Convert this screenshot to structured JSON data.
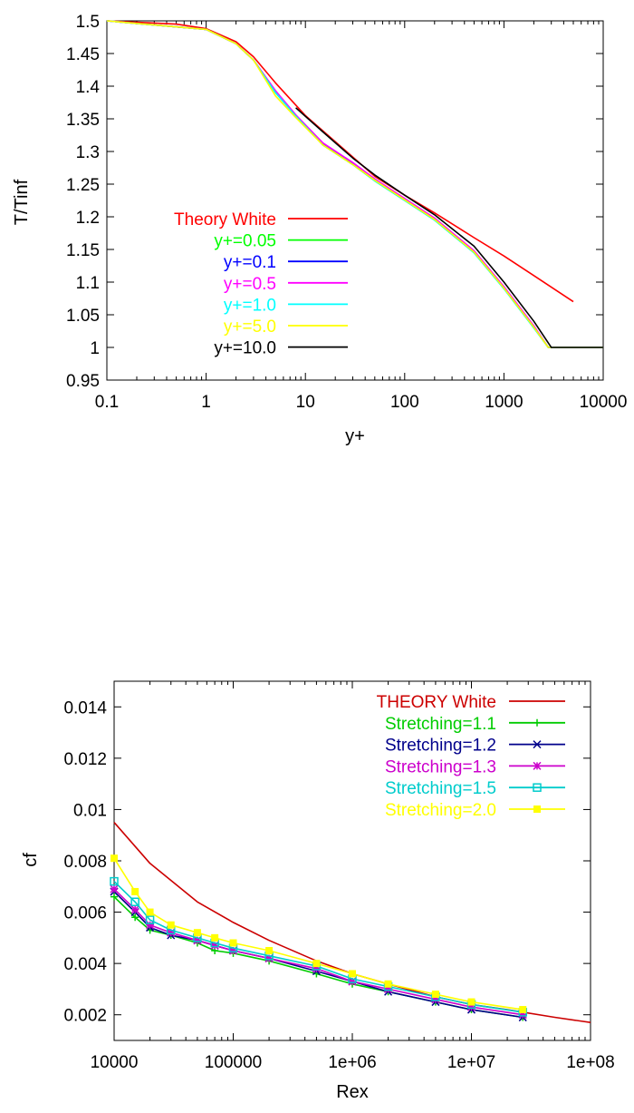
{
  "chart_data": [
    {
      "type": "line",
      "xlabel": "y+",
      "ylabel": "T/Tinf",
      "xscale": "log",
      "xlim": [
        0.1,
        10000
      ],
      "ylim": [
        0.95,
        1.5
      ],
      "xticks": [
        "0.1",
        "1",
        "10",
        "100",
        "1000",
        "10000"
      ],
      "yticks": [
        "0.95",
        "1",
        "1.05",
        "1.1",
        "1.15",
        "1.2",
        "1.25",
        "1.3",
        "1.35",
        "1.4",
        "1.45",
        "1.5"
      ],
      "grid": false,
      "legend_position": "left",
      "series": [
        {
          "name": "Theory White",
          "color": "#ff0000",
          "points": [
            [
              0.1,
              1.5
            ],
            [
              0.5,
              1.495
            ],
            [
              1,
              1.488
            ],
            [
              2,
              1.468
            ],
            [
              3,
              1.445
            ],
            [
              5,
              1.405
            ],
            [
              10,
              1.355
            ],
            [
              20,
              1.315
            ],
            [
              50,
              1.262
            ],
            [
              100,
              1.233
            ],
            [
              200,
              1.206
            ],
            [
              500,
              1.168
            ],
            [
              1000,
              1.14
            ],
            [
              2000,
              1.11
            ],
            [
              5000,
              1.07
            ]
          ]
        },
        {
          "name": "y+=0.05",
          "color": "#00ff00",
          "points": [
            [
              0.1,
              1.5
            ],
            [
              1,
              1.487
            ],
            [
              2,
              1.465
            ],
            [
              3,
              1.44
            ],
            [
              5,
              1.39
            ],
            [
              8,
              1.355
            ],
            [
              15,
              1.31
            ],
            [
              30,
              1.28
            ],
            [
              50,
              1.255
            ],
            [
              100,
              1.225
            ],
            [
              200,
              1.195
            ],
            [
              500,
              1.145
            ],
            [
              1000,
              1.09
            ],
            [
              2000,
              1.03
            ],
            [
              2800,
              1.0
            ],
            [
              10000,
              1.0
            ]
          ]
        },
        {
          "name": "y+=0.1",
          "color": "#0000ff",
          "points": [
            [
              0.1,
              1.5
            ],
            [
              1,
              1.487
            ],
            [
              2,
              1.465
            ],
            [
              3,
              1.44
            ],
            [
              5,
              1.392
            ],
            [
              8,
              1.355
            ],
            [
              15,
              1.312
            ],
            [
              30,
              1.282
            ],
            [
              50,
              1.257
            ],
            [
              100,
              1.227
            ],
            [
              200,
              1.197
            ],
            [
              500,
              1.147
            ],
            [
              1000,
              1.092
            ],
            [
              2000,
              1.032
            ],
            [
              2800,
              1.0
            ],
            [
              10000,
              1.0
            ]
          ]
        },
        {
          "name": "y+=0.5",
          "color": "#ff00ff",
          "points": [
            [
              0.1,
              1.5
            ],
            [
              1,
              1.487
            ],
            [
              2,
              1.465
            ],
            [
              3,
              1.44
            ],
            [
              5,
              1.393
            ],
            [
              8,
              1.356
            ],
            [
              15,
              1.313
            ],
            [
              30,
              1.283
            ],
            [
              50,
              1.258
            ],
            [
              100,
              1.228
            ],
            [
              200,
              1.198
            ],
            [
              500,
              1.148
            ],
            [
              1000,
              1.093
            ],
            [
              2000,
              1.033
            ],
            [
              2800,
              1.0
            ],
            [
              10000,
              1.0
            ]
          ]
        },
        {
          "name": "y+=1.0",
          "color": "#00ffff",
          "points": [
            [
              0.1,
              1.5
            ],
            [
              1,
              1.487
            ],
            [
              2,
              1.465
            ],
            [
              3,
              1.44
            ],
            [
              5,
              1.39
            ],
            [
              8,
              1.354
            ],
            [
              15,
              1.31
            ],
            [
              30,
              1.28
            ],
            [
              50,
              1.255
            ],
            [
              100,
              1.225
            ],
            [
              200,
              1.195
            ],
            [
              500,
              1.145
            ],
            [
              1000,
              1.09
            ],
            [
              2000,
              1.03
            ],
            [
              2800,
              1.0
            ],
            [
              10000,
              1.0
            ]
          ]
        },
        {
          "name": "y+=5.0",
          "color": "#ffff00",
          "points": [
            [
              0.1,
              1.5
            ],
            [
              1,
              1.487
            ],
            [
              2,
              1.465
            ],
            [
              3,
              1.44
            ],
            [
              5,
              1.385
            ],
            [
              8,
              1.352
            ],
            [
              15,
              1.31
            ],
            [
              30,
              1.28
            ],
            [
              50,
              1.256
            ],
            [
              100,
              1.226
            ],
            [
              200,
              1.196
            ],
            [
              500,
              1.146
            ],
            [
              1000,
              1.091
            ],
            [
              2000,
              1.031
            ],
            [
              2800,
              1.0
            ],
            [
              10000,
              1.0
            ]
          ]
        },
        {
          "name": "y+=10.0",
          "color": "#000000",
          "points": [
            [
              8,
              1.367
            ],
            [
              15,
              1.33
            ],
            [
              30,
              1.29
            ],
            [
              50,
              1.264
            ],
            [
              100,
              1.233
            ],
            [
              200,
              1.203
            ],
            [
              500,
              1.155
            ],
            [
              1000,
              1.1
            ],
            [
              2000,
              1.04
            ],
            [
              3000,
              1.0
            ],
            [
              10000,
              1.0
            ]
          ]
        }
      ]
    },
    {
      "type": "line",
      "xlabel": "Rex",
      "ylabel": "cf",
      "xscale": "log",
      "xlim": [
        10000,
        100000000
      ],
      "ylim": [
        0.001,
        0.015
      ],
      "xticks": [
        "10000",
        "100000",
        "1e+06",
        "1e+07",
        "1e+08"
      ],
      "yticks": [
        "0.002",
        "0.004",
        "0.006",
        "0.008",
        "0.01",
        "0.012",
        "0.014"
      ],
      "grid": false,
      "legend_position": "top-right",
      "series": [
        {
          "name": "THEORY White",
          "color": "#cc0000",
          "marker": "none",
          "points": [
            [
              10000,
              0.0095
            ],
            [
              20000,
              0.0079
            ],
            [
              50000,
              0.0064
            ],
            [
              100000,
              0.0056
            ],
            [
              200000,
              0.0049
            ],
            [
              500000,
              0.0041
            ],
            [
              1000000,
              0.0036
            ],
            [
              2000000,
              0.0032
            ],
            [
              5000000,
              0.0027
            ],
            [
              10000000,
              0.0024
            ],
            [
              20000000,
              0.0022
            ],
            [
              50000000,
              0.0019
            ],
            [
              100000000,
              0.0017
            ]
          ]
        },
        {
          "name": "Stretching=1.1",
          "color": "#00cc00",
          "marker": "plus",
          "points": [
            [
              10000,
              0.0066
            ],
            [
              15000,
              0.0058
            ],
            [
              20000,
              0.0053
            ],
            [
              30000,
              0.0051
            ],
            [
              50000,
              0.0048
            ],
            [
              70000,
              0.0045
            ],
            [
              100000,
              0.0044
            ],
            [
              200000,
              0.0041
            ],
            [
              500000,
              0.0036
            ],
            [
              1000000,
              0.0032
            ],
            [
              2000000,
              0.0029
            ],
            [
              5000000,
              0.0025
            ],
            [
              10000000,
              0.0022
            ],
            [
              27000000,
              0.0019
            ]
          ]
        },
        {
          "name": "Stretching=1.2",
          "color": "#00008b",
          "marker": "cross",
          "points": [
            [
              10000,
              0.0068
            ],
            [
              15000,
              0.006
            ],
            [
              20000,
              0.0054
            ],
            [
              30000,
              0.0051
            ],
            [
              50000,
              0.0049
            ],
            [
              70000,
              0.0047
            ],
            [
              100000,
              0.0045
            ],
            [
              200000,
              0.0042
            ],
            [
              500000,
              0.0037
            ],
            [
              1000000,
              0.0033
            ],
            [
              2000000,
              0.0029
            ],
            [
              5000000,
              0.0025
            ],
            [
              10000000,
              0.0022
            ],
            [
              27000000,
              0.0019
            ]
          ]
        },
        {
          "name": "Stretching=1.3",
          "color": "#cc00cc",
          "marker": "star",
          "points": [
            [
              10000,
              0.0069
            ],
            [
              15000,
              0.0061
            ],
            [
              20000,
              0.0055
            ],
            [
              30000,
              0.0052
            ],
            [
              50000,
              0.0049
            ],
            [
              70000,
              0.0047
            ],
            [
              100000,
              0.0045
            ],
            [
              200000,
              0.0042
            ],
            [
              500000,
              0.0038
            ],
            [
              1000000,
              0.0033
            ],
            [
              2000000,
              0.003
            ],
            [
              5000000,
              0.0026
            ],
            [
              10000000,
              0.0023
            ],
            [
              27000000,
              0.002
            ]
          ]
        },
        {
          "name": "Stretching=1.5",
          "color": "#00cccc",
          "marker": "square",
          "points": [
            [
              10000,
              0.0072
            ],
            [
              15000,
              0.0064
            ],
            [
              20000,
              0.0057
            ],
            [
              30000,
              0.0053
            ],
            [
              50000,
              0.005
            ],
            [
              70000,
              0.0048
            ],
            [
              100000,
              0.0046
            ],
            [
              200000,
              0.0043
            ],
            [
              500000,
              0.0039
            ],
            [
              1000000,
              0.0034
            ],
            [
              2000000,
              0.0031
            ],
            [
              5000000,
              0.0027
            ],
            [
              10000000,
              0.0024
            ],
            [
              27000000,
              0.0021
            ]
          ]
        },
        {
          "name": "Stretching=2.0",
          "color": "#ffff00",
          "marker": "filled-square",
          "points": [
            [
              10000,
              0.0081
            ],
            [
              15000,
              0.0068
            ],
            [
              20000,
              0.006
            ],
            [
              30000,
              0.0055
            ],
            [
              50000,
              0.0052
            ],
            [
              70000,
              0.005
            ],
            [
              100000,
              0.0048
            ],
            [
              200000,
              0.0045
            ],
            [
              500000,
              0.004
            ],
            [
              1000000,
              0.0036
            ],
            [
              2000000,
              0.0032
            ],
            [
              5000000,
              0.0028
            ],
            [
              10000000,
              0.0025
            ],
            [
              27000000,
              0.0022
            ]
          ]
        }
      ]
    }
  ]
}
